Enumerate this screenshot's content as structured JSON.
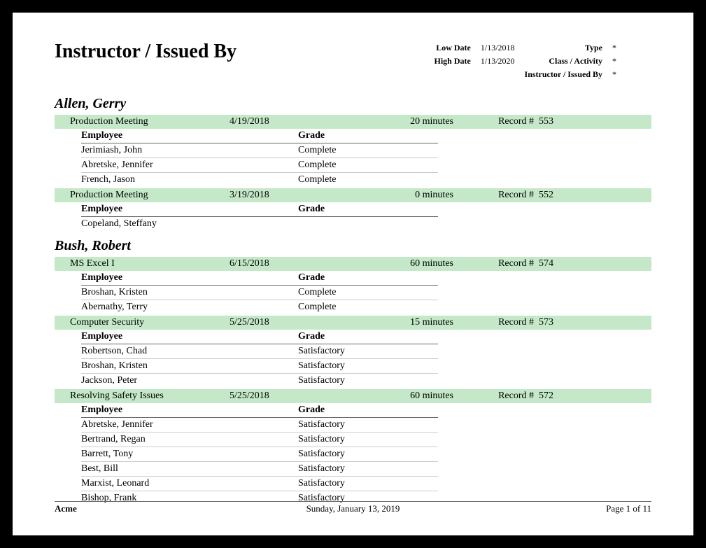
{
  "report": {
    "title": "Instructor / Issued By",
    "params": {
      "low_date_label": "Low Date",
      "low_date": "1/13/2018",
      "high_date_label": "High Date",
      "high_date": "1/13/2020",
      "type_label": "Type",
      "type": "*",
      "class_label": "Class / Activity",
      "class": "*",
      "instr_label": "Instructor / Issued By",
      "instr": "*"
    },
    "col_headers": {
      "employee": "Employee",
      "grade": "Grade",
      "record": "Record #"
    },
    "instructors": [
      {
        "name": "Allen, Gerry",
        "classes": [
          {
            "name": "Production Meeting",
            "date": "4/19/2018",
            "duration": "20 minutes",
            "record": "553",
            "employees": [
              {
                "name": "Jerimiash, John",
                "grade": "Complete"
              },
              {
                "name": "Abretske, Jennifer",
                "grade": "Complete"
              },
              {
                "name": "French, Jason",
                "grade": "Complete"
              }
            ]
          },
          {
            "name": "Production Meeting",
            "date": "3/19/2018",
            "duration": "0 minutes",
            "record": "552",
            "employees": [
              {
                "name": "Copeland, Steffany",
                "grade": ""
              }
            ]
          }
        ]
      },
      {
        "name": "Bush, Robert",
        "classes": [
          {
            "name": "MS Excel I",
            "date": "6/15/2018",
            "duration": "60 minutes",
            "record": "574",
            "employees": [
              {
                "name": "Broshan, Kristen",
                "grade": "Complete"
              },
              {
                "name": "Abernathy, Terry",
                "grade": "Complete"
              }
            ]
          },
          {
            "name": "Computer Security",
            "date": "5/25/2018",
            "duration": "15 minutes",
            "record": "573",
            "employees": [
              {
                "name": "Robertson, Chad",
                "grade": "Satisfactory"
              },
              {
                "name": "Broshan, Kristen",
                "grade": "Satisfactory"
              },
              {
                "name": "Jackson, Peter",
                "grade": "Satisfactory"
              }
            ]
          },
          {
            "name": "Resolving Safety Issues",
            "date": "5/25/2018",
            "duration": "60 minutes",
            "record": "572",
            "employees": [
              {
                "name": "Abretske, Jennifer",
                "grade": "Satisfactory"
              },
              {
                "name": "Bertrand, Regan",
                "grade": "Satisfactory"
              },
              {
                "name": "Barrett, Tony",
                "grade": "Satisfactory"
              },
              {
                "name": "Best, Bill",
                "grade": "Satisfactory"
              },
              {
                "name": "Marxist, Leonard",
                "grade": "Satisfactory"
              },
              {
                "name": "Bishop, Frank",
                "grade": "Satisfactory"
              }
            ]
          }
        ]
      }
    ]
  },
  "footer": {
    "company": "Acme",
    "date": "Sunday, January 13, 2019",
    "page": "Page 1 of 11"
  },
  "colors": {
    "class_bar_bg": "#c4e8c8",
    "page_bg": "#ffffff",
    "border_bg": "#000000"
  }
}
